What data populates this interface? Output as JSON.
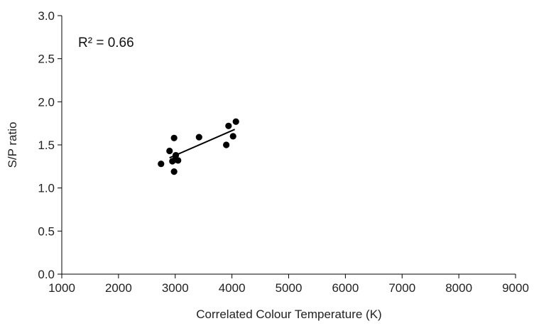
{
  "chart_data": {
    "type": "scatter",
    "title": "",
    "xlabel": "Correlated Colour Temperature  (K)",
    "ylabel": "S/P ratio",
    "xlim": [
      1000,
      9000
    ],
    "ylim": [
      0.0,
      3.0
    ],
    "x_ticks": [
      1000,
      2000,
      3000,
      4000,
      5000,
      6000,
      7000,
      8000,
      9000
    ],
    "y_ticks": [
      "0.0",
      "0.5",
      "1.0",
      "1.5",
      "2.0",
      "2.5",
      "3.0"
    ],
    "grid": false,
    "legend": "none",
    "annotation": "R² = 0.66",
    "points": [
      {
        "x": 2750,
        "y": 1.28
      },
      {
        "x": 2900,
        "y": 1.43
      },
      {
        "x": 2950,
        "y": 1.31
      },
      {
        "x": 2980,
        "y": 1.58
      },
      {
        "x": 2980,
        "y": 1.19
      },
      {
        "x": 3000,
        "y": 1.33
      },
      {
        "x": 3010,
        "y": 1.38
      },
      {
        "x": 3050,
        "y": 1.32
      },
      {
        "x": 3420,
        "y": 1.59
      },
      {
        "x": 3900,
        "y": 1.5
      },
      {
        "x": 3940,
        "y": 1.72
      },
      {
        "x": 4020,
        "y": 1.6
      },
      {
        "x": 4070,
        "y": 1.77
      }
    ],
    "trendline": {
      "x": [
        2900,
        4050
      ],
      "y": [
        1.35,
        1.68
      ]
    },
    "colors": {
      "points": "#000000",
      "axis": "#000000",
      "trendline": "#000000"
    }
  }
}
